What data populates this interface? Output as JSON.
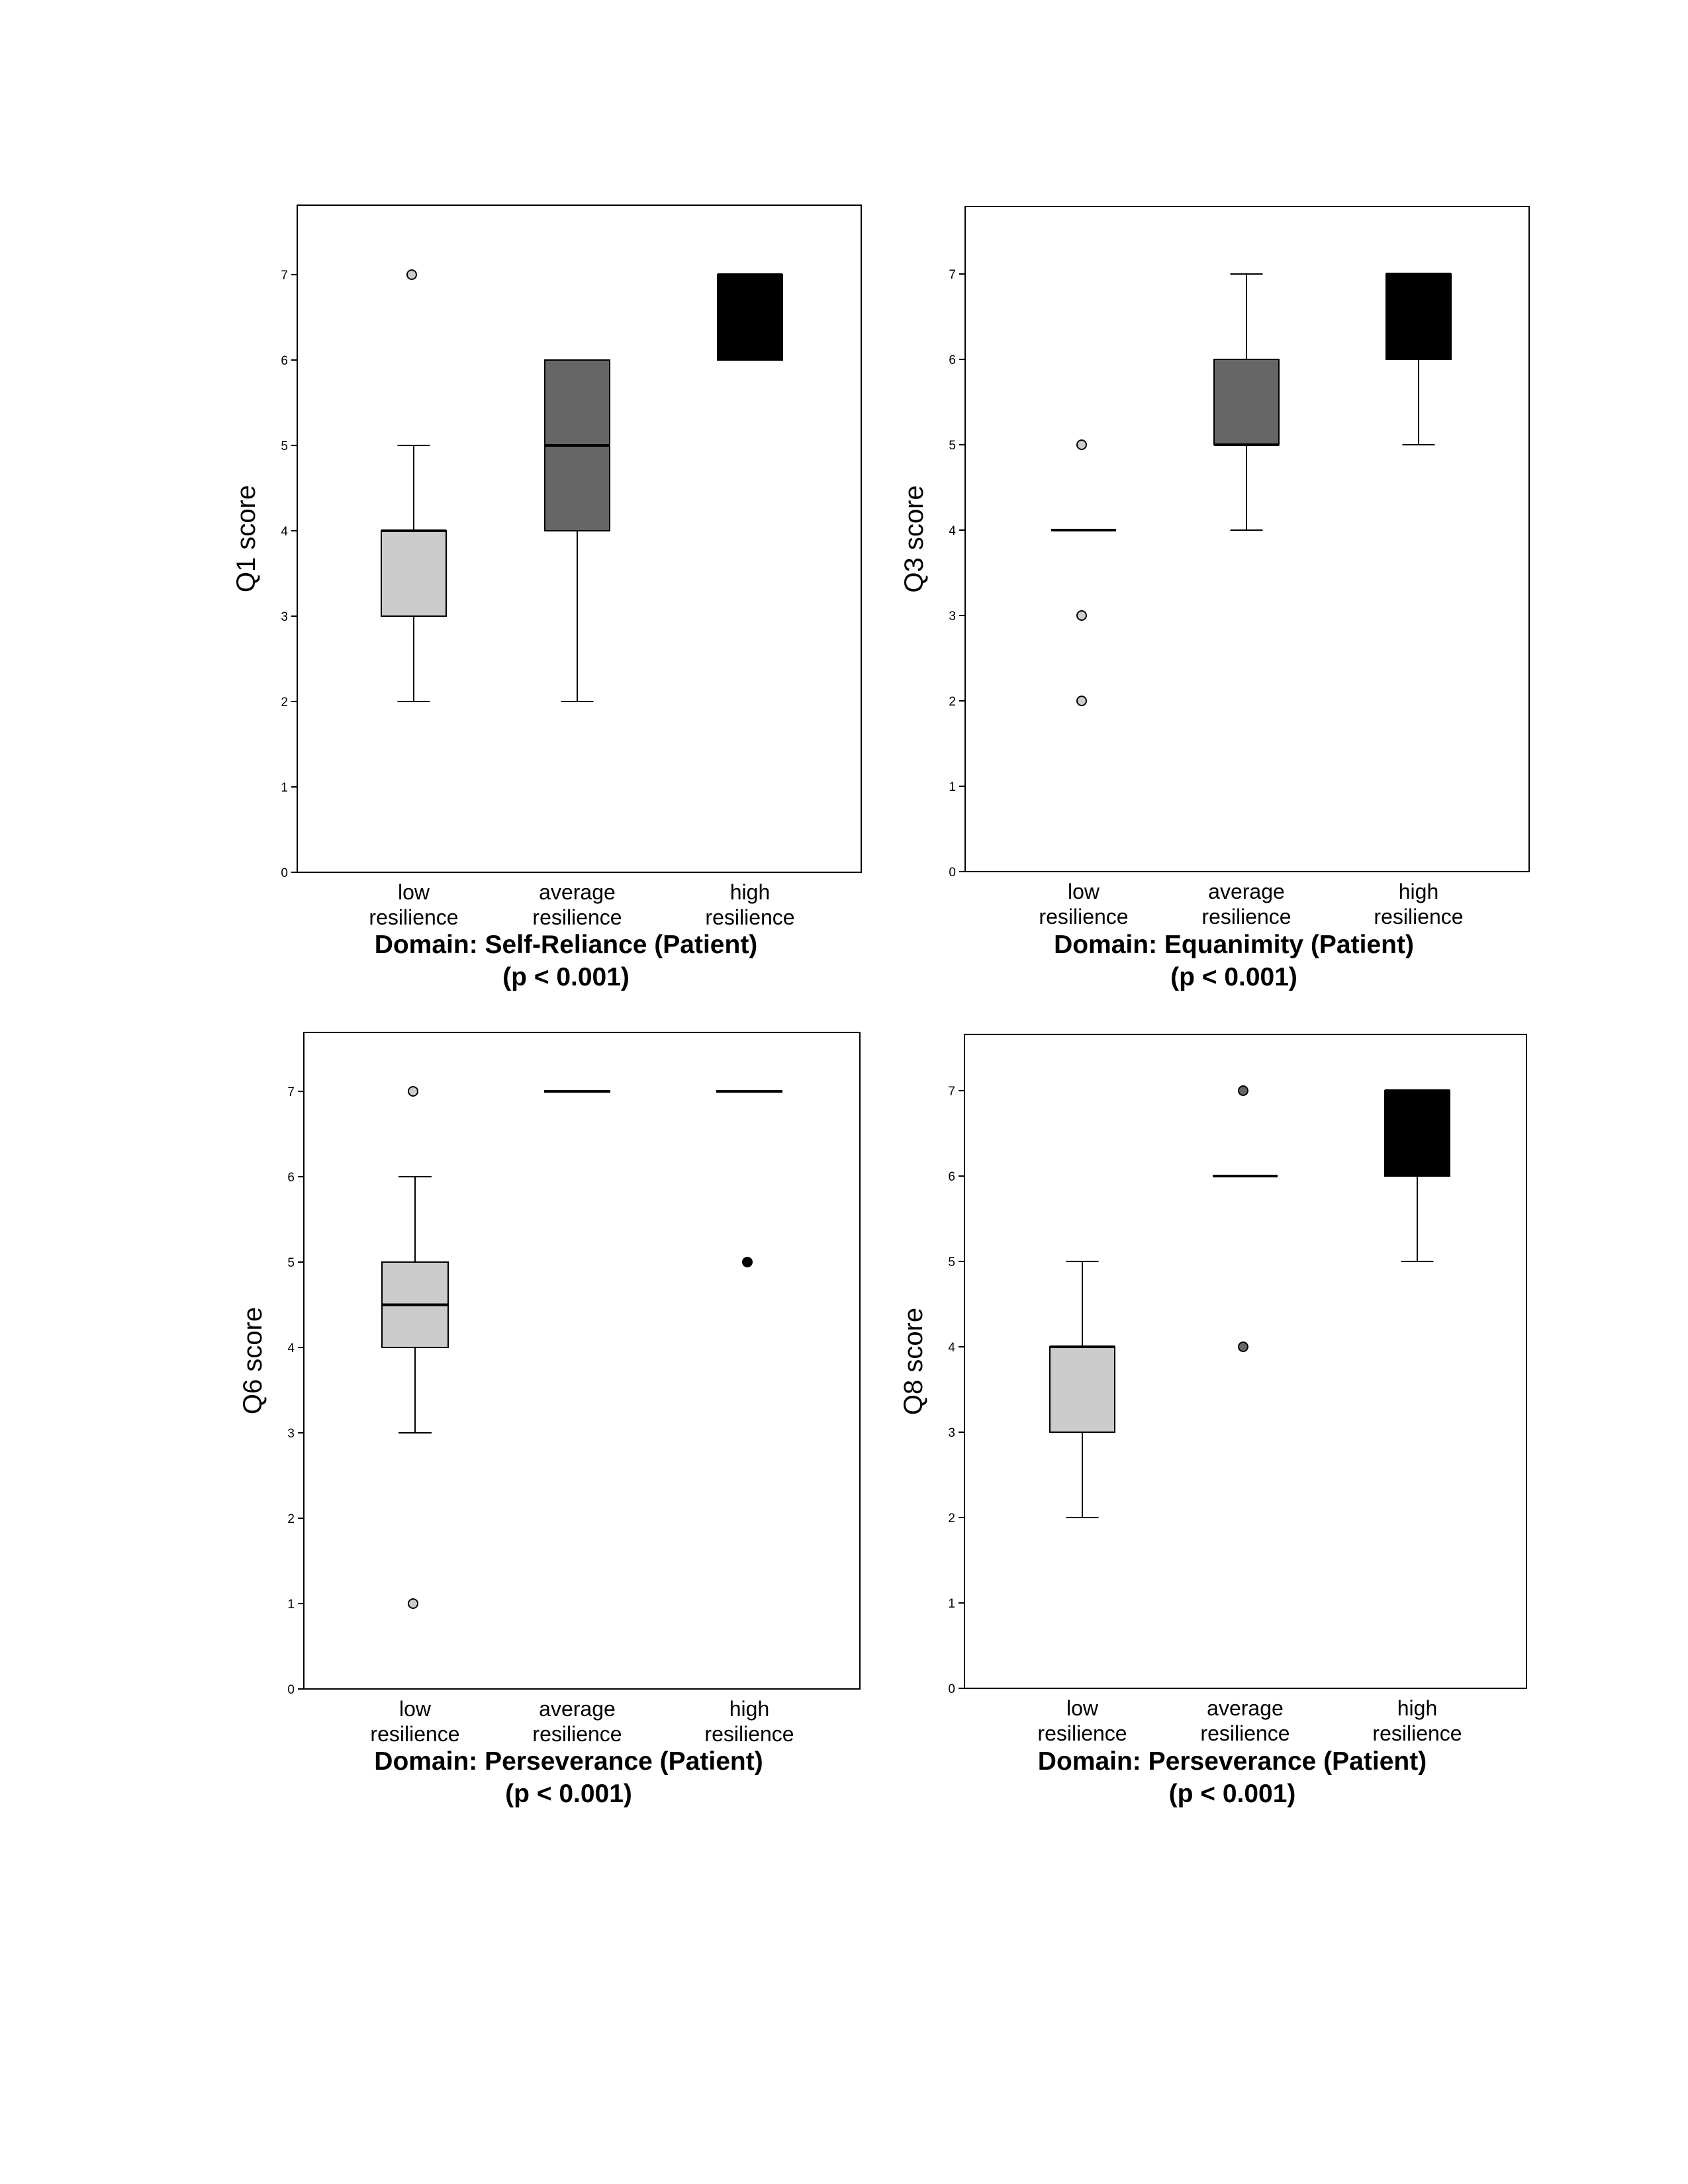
{
  "chart_data": [
    {
      "type": "box",
      "ylabel": "Q1 score",
      "ylim": [
        0,
        7.7
      ],
      "yticks": [
        0,
        1,
        2,
        3,
        4,
        5,
        6,
        7
      ],
      "categories": [
        "low resilience",
        "average resilience",
        "high resilience"
      ],
      "category_lines": [
        [
          "low",
          "resilience"
        ],
        [
          "average",
          "resilience"
        ],
        [
          "high",
          "resilience"
        ]
      ],
      "title_lines": [
        "Domain: Self-Reliance (Patient)",
        "(p < 0.001)"
      ],
      "boxes": [
        {
          "min": 2,
          "q1": 3,
          "median": 4,
          "q3": 4,
          "max": 5,
          "fill": "#cccccc",
          "outliers": [
            7
          ],
          "outlier_fill": "#cccccc"
        },
        {
          "min": 2,
          "q1": 4,
          "median": 5,
          "q3": 6,
          "max": 6,
          "fill": "#666666",
          "outliers": [],
          "outlier_fill": "#666666"
        },
        {
          "min": 6,
          "q1": 6,
          "median": 7,
          "q3": 7,
          "max": 7,
          "fill": "#000000",
          "outliers": [],
          "outlier_fill": "#000000"
        }
      ]
    },
    {
      "type": "box",
      "ylabel": "Q3 score",
      "ylim": [
        0,
        7.7
      ],
      "yticks": [
        0,
        1,
        2,
        3,
        4,
        5,
        6,
        7
      ],
      "categories": [
        "low resilience",
        "average resilience",
        "high resilience"
      ],
      "category_lines": [
        [
          "low",
          "resilience"
        ],
        [
          "average",
          "resilience"
        ],
        [
          "high",
          "resilience"
        ]
      ],
      "title_lines": [
        "Domain: Equanimity (Patient)",
        "(p < 0.001)"
      ],
      "boxes": [
        {
          "min": 4,
          "q1": 4,
          "median": 4,
          "q3": 4,
          "max": 4,
          "fill": "#cccccc",
          "outliers": [
            5,
            3,
            2
          ],
          "outlier_fill": "#cccccc"
        },
        {
          "min": 4,
          "q1": 5,
          "median": 5,
          "q3": 6,
          "max": 7,
          "fill": "#666666",
          "outliers": [],
          "outlier_fill": "#666666"
        },
        {
          "min": 5,
          "q1": 6,
          "median": 7,
          "q3": 7,
          "max": 7,
          "fill": "#000000",
          "outliers": [],
          "outlier_fill": "#000000"
        }
      ]
    },
    {
      "type": "box",
      "ylabel": "Q6 score",
      "ylim": [
        0,
        7.7
      ],
      "yticks": [
        0,
        1,
        2,
        3,
        4,
        5,
        6,
        7
      ],
      "categories": [
        "low resilience",
        "average resilience",
        "high resilience"
      ],
      "category_lines": [
        [
          "low",
          "resilience"
        ],
        [
          "average",
          "resilience"
        ],
        [
          "high",
          "resilience"
        ]
      ],
      "title_lines": [
        "Domain: Perseverance (Patient)",
        "(p < 0.001)"
      ],
      "boxes": [
        {
          "min": 3,
          "q1": 4,
          "median": 4.5,
          "q3": 5,
          "max": 6,
          "fill": "#cccccc",
          "outliers": [
            7,
            1
          ],
          "outlier_fill": "#cccccc"
        },
        {
          "min": 7,
          "q1": 7,
          "median": 7,
          "q3": 7,
          "max": 7,
          "fill": "#666666",
          "outliers": [],
          "outlier_fill": "#666666"
        },
        {
          "min": 7,
          "q1": 7,
          "median": 7,
          "q3": 7,
          "max": 7,
          "fill": "#000000",
          "outliers": [
            5
          ],
          "outlier_fill": "#000000"
        }
      ]
    },
    {
      "type": "box",
      "ylabel": "Q8 score",
      "ylim": [
        0,
        7.7
      ],
      "yticks": [
        0,
        1,
        2,
        3,
        4,
        5,
        6,
        7
      ],
      "categories": [
        "low resilience",
        "average resilience",
        "high resilience"
      ],
      "category_lines": [
        [
          "low",
          "resilience"
        ],
        [
          "average",
          "resilience"
        ],
        [
          "high",
          "resilience"
        ]
      ],
      "title_lines": [
        "Domain: Perseverance (Patient)",
        "(p < 0.001)"
      ],
      "boxes": [
        {
          "min": 2,
          "q1": 3,
          "median": 4,
          "q3": 4,
          "max": 5,
          "fill": "#cccccc",
          "outliers": [],
          "outlier_fill": "#cccccc"
        },
        {
          "min": 6,
          "q1": 6,
          "median": 6,
          "q3": 6,
          "max": 6,
          "fill": "#666666",
          "outliers": [
            7,
            4
          ],
          "outlier_fill": "#666666"
        },
        {
          "min": 5,
          "q1": 6,
          "median": 7,
          "q3": 7,
          "max": 7,
          "fill": "#000000",
          "outliers": [],
          "outlier_fill": "#000000"
        }
      ]
    }
  ]
}
